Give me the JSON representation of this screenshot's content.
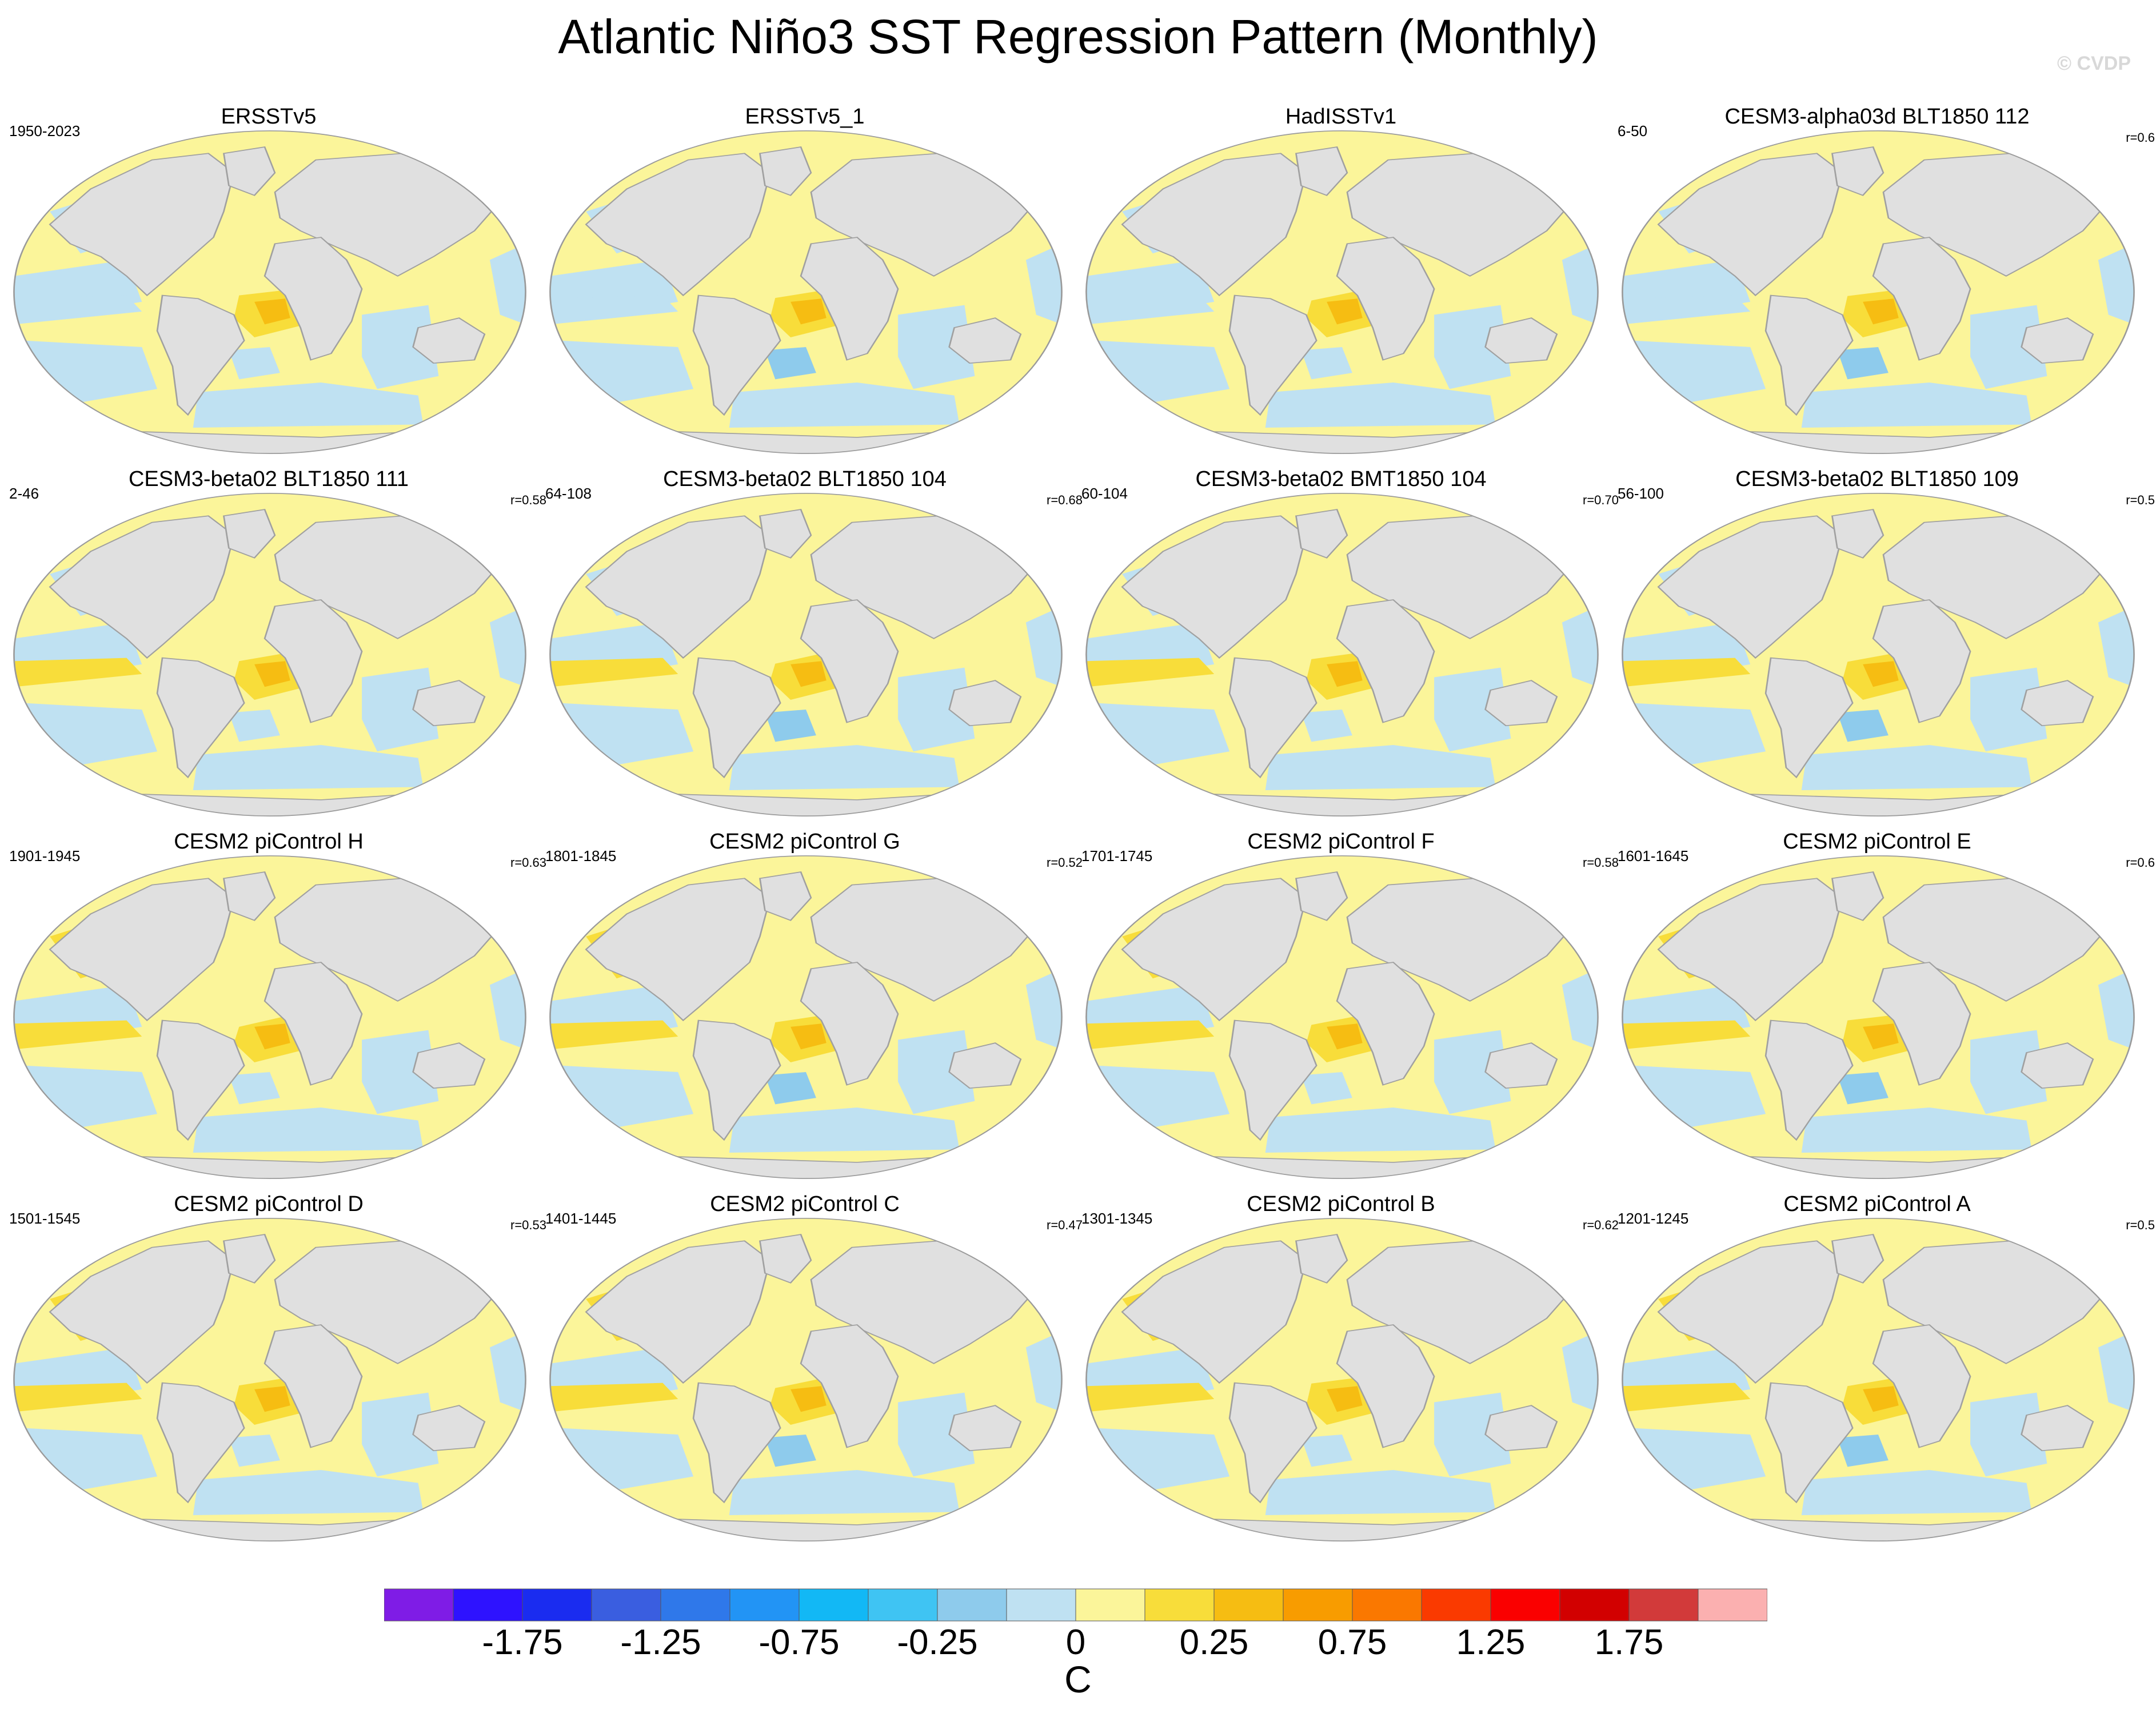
{
  "title": "Atlantic Niño3 SST Regression Pattern (Monthly)",
  "watermark": "© CVDP",
  "panels": [
    {
      "title": "ERSSTv5",
      "period": "1950-2023",
      "corr": ""
    },
    {
      "title": "ERSSTv5_1",
      "period": "",
      "corr": ""
    },
    {
      "title": "HadISSTv1",
      "period": "",
      "corr": ""
    },
    {
      "title": "CESM3-alpha03d BLT1850 112",
      "period": "6-50",
      "corr": "r=0.6"
    },
    {
      "title": "CESM3-beta02 BLT1850 111",
      "period": "2-46",
      "corr": "r=0.58"
    },
    {
      "title": "CESM3-beta02 BLT1850 104",
      "period": "64-108",
      "corr": "r=0.68"
    },
    {
      "title": "CESM3-beta02 BMT1850 104",
      "period": "60-104",
      "corr": "r=0.70"
    },
    {
      "title": "CESM3-beta02 BLT1850 109",
      "period": "56-100",
      "corr": "r=0.5"
    },
    {
      "title": "CESM2 piControl H",
      "period": "1901-1945",
      "corr": "r=0.63"
    },
    {
      "title": "CESM2 piControl G",
      "period": "1801-1845",
      "corr": "r=0.52"
    },
    {
      "title": "CESM2 piControl F",
      "period": "1701-1745",
      "corr": "r=0.58"
    },
    {
      "title": "CESM2 piControl E",
      "period": "1601-1645",
      "corr": "r=0.6"
    },
    {
      "title": "CESM2 piControl D",
      "period": "1501-1545",
      "corr": "r=0.53"
    },
    {
      "title": "CESM2 piControl C",
      "period": "1401-1445",
      "corr": "r=0.47"
    },
    {
      "title": "CESM2 piControl B",
      "period": "1301-1345",
      "corr": "r=0.62"
    },
    {
      "title": "CESM2 piControl A",
      "period": "1201-1245",
      "corr": "r=0.5"
    }
  ],
  "colorbar": {
    "colors": [
      "#7f1ce6",
      "#2e12ff",
      "#1a2cf0",
      "#3a5ee0",
      "#2f78ea",
      "#2294f5",
      "#12b8f5",
      "#3fc4f3",
      "#8ecbec",
      "#bfe1f2",
      "#fbf59a",
      "#f8dd3a",
      "#f6bd12",
      "#f89c00",
      "#fa7800",
      "#fa3a00",
      "#fa0000",
      "#d20000",
      "#d23a3a",
      "#fbb0b0"
    ],
    "labels": [
      "-1.75",
      "-1.25",
      "-0.75",
      "-0.25",
      "0",
      "0.25",
      "0.75",
      "1.25",
      "1.75"
    ],
    "units": "C"
  },
  "map_colors": {
    "ocean_base": "#fbf59a",
    "negative_weak": "#bfe1f2",
    "negative_mid": "#8ecbec",
    "negative_strong": "#3fc4f3",
    "positive_weak": "#f8dd3a",
    "positive_mid": "#f6bd12",
    "land": "#e0e0e0",
    "land_edge": "#a0a0a0"
  }
}
